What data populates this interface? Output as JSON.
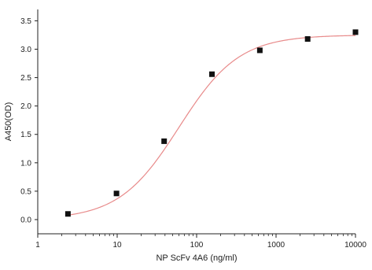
{
  "chart_data": {
    "type": "scatter",
    "title": "",
    "xlabel": "NP ScFv 4A6 (ng/ml)",
    "ylabel": "A450(OD)",
    "xscale": "log",
    "xlim": [
      1,
      10000
    ],
    "ylim": [
      -0.25,
      3.7
    ],
    "x_ticks": [
      1,
      10,
      100,
      1000,
      10000
    ],
    "x_tick_labels": [
      "1",
      "10",
      "100",
      "1000",
      "10000"
    ],
    "y_ticks": [
      0.0,
      0.5,
      1.0,
      1.5,
      2.0,
      2.5,
      3.0,
      3.5
    ],
    "y_tick_labels": [
      "0.0",
      "0.5",
      "1.0",
      "1.5",
      "2.0",
      "2.5",
      "3.0",
      "3.5"
    ],
    "grid": false,
    "legend": "none",
    "series": [
      {
        "marker": "square",
        "color": "#111111",
        "x": [
          2.4,
          9.8,
          39,
          156,
          625,
          2500,
          10000
        ],
        "y": [
          0.1,
          0.46,
          1.38,
          2.56,
          2.98,
          3.18,
          3.3
        ]
      }
    ],
    "fit_curve": {
      "model": "4PL",
      "color": "#e88a8a",
      "bottom": 0.0,
      "top": 3.25,
      "ec50": 60,
      "hill": 1.15
    }
  }
}
